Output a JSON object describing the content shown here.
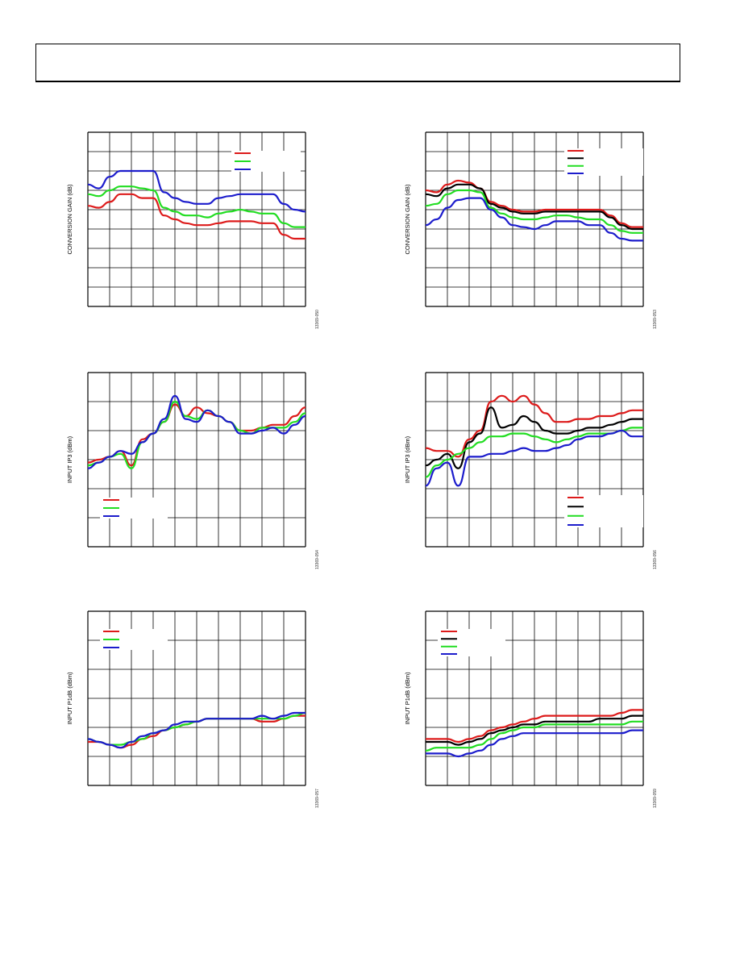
{
  "chart_data": [
    {
      "type": "line",
      "ylabel": "CONVERSION GAIN (dB)",
      "figure_id": "13369-050",
      "x": [
        0,
        1,
        2,
        3,
        4,
        5,
        6,
        7,
        8,
        9,
        10,
        11,
        12,
        13,
        14,
        15,
        16,
        17,
        18,
        19,
        20
      ],
      "xlim": [
        0,
        20
      ],
      "ylim": [
        0,
        9
      ],
      "grid": true,
      "legend_position": "top-right",
      "series": [
        {
          "color": "#dd1b1b",
          "values": [
            5.2,
            5.1,
            5.4,
            5.8,
            5.8,
            5.6,
            5.6,
            4.7,
            4.5,
            4.3,
            4.2,
            4.2,
            4.3,
            4.4,
            4.4,
            4.4,
            4.3,
            4.3,
            3.7,
            3.5,
            3.5
          ]
        },
        {
          "color": "#22dd22",
          "values": [
            5.8,
            5.7,
            6.0,
            6.2,
            6.2,
            6.1,
            6.0,
            5.1,
            4.9,
            4.7,
            4.7,
            4.6,
            4.8,
            4.9,
            5.0,
            4.9,
            4.8,
            4.8,
            4.3,
            4.1,
            4.1
          ]
        },
        {
          "color": "#1c1ccc",
          "values": [
            6.3,
            6.1,
            6.7,
            7.0,
            7.0,
            7.0,
            7.0,
            5.9,
            5.6,
            5.4,
            5.3,
            5.3,
            5.6,
            5.7,
            5.8,
            5.8,
            5.8,
            5.8,
            5.3,
            5.0,
            4.9
          ]
        }
      ]
    },
    {
      "type": "line",
      "ylabel": "CONVERSION GAIN (dB)",
      "figure_id": "13369-053",
      "x": [
        0,
        1,
        2,
        3,
        4,
        5,
        6,
        7,
        8,
        9,
        10,
        11,
        12,
        13,
        14,
        15,
        16,
        17,
        18,
        19,
        20
      ],
      "xlim": [
        0,
        20
      ],
      "ylim": [
        0,
        9
      ],
      "grid": true,
      "legend_position": "top-right",
      "series": [
        {
          "color": "#dd1b1b",
          "values": [
            6.0,
            5.9,
            6.3,
            6.5,
            6.4,
            6.1,
            5.4,
            5.2,
            5.0,
            4.9,
            4.9,
            5.0,
            5.0,
            5.0,
            5.0,
            5.0,
            5.0,
            4.7,
            4.3,
            4.1,
            4.1
          ]
        },
        {
          "color": "#000000",
          "values": [
            5.8,
            5.7,
            6.1,
            6.3,
            6.3,
            6.1,
            5.3,
            5.1,
            4.9,
            4.8,
            4.8,
            4.9,
            4.9,
            4.9,
            4.9,
            4.9,
            4.9,
            4.6,
            4.2,
            4.0,
            4.0
          ]
        },
        {
          "color": "#22dd22",
          "values": [
            5.2,
            5.3,
            5.8,
            6.0,
            6.0,
            5.9,
            5.1,
            4.8,
            4.6,
            4.5,
            4.5,
            4.6,
            4.7,
            4.7,
            4.6,
            4.5,
            4.5,
            4.2,
            3.9,
            3.8,
            3.8
          ]
        },
        {
          "color": "#1c1ccc",
          "values": [
            4.2,
            4.5,
            5.1,
            5.5,
            5.6,
            5.6,
            5.0,
            4.6,
            4.2,
            4.1,
            4.0,
            4.2,
            4.4,
            4.4,
            4.4,
            4.2,
            4.2,
            3.8,
            3.5,
            3.4,
            3.4
          ]
        }
      ]
    },
    {
      "type": "line",
      "ylabel": "INPUT IP3 (dBm)",
      "figure_id": "13369-054",
      "x": [
        0,
        1,
        2,
        3,
        4,
        5,
        6,
        7,
        8,
        9,
        10,
        11,
        12,
        13,
        14,
        15,
        16,
        17,
        18,
        19,
        20
      ],
      "xlim": [
        0,
        20
      ],
      "ylim": [
        0,
        6
      ],
      "grid": true,
      "legend_position": "bottom-left",
      "series": [
        {
          "color": "#dd1b1b",
          "values": [
            2.9,
            3.0,
            3.1,
            3.3,
            2.8,
            3.7,
            3.9,
            4.3,
            4.9,
            4.5,
            4.8,
            4.6,
            4.5,
            4.3,
            4.0,
            4.0,
            4.1,
            4.2,
            4.2,
            4.5,
            4.8
          ]
        },
        {
          "color": "#22dd22",
          "values": [
            2.8,
            2.9,
            3.1,
            3.2,
            2.7,
            3.6,
            3.9,
            4.3,
            5.0,
            4.5,
            4.4,
            4.7,
            4.5,
            4.3,
            4.0,
            3.9,
            4.1,
            4.1,
            4.1,
            4.3,
            4.6
          ]
        },
        {
          "color": "#1c1ccc",
          "values": [
            2.7,
            2.9,
            3.1,
            3.3,
            3.2,
            3.6,
            3.9,
            4.4,
            5.2,
            4.4,
            4.3,
            4.7,
            4.5,
            4.3,
            3.9,
            3.9,
            4.0,
            4.1,
            3.9,
            4.2,
            4.5
          ]
        }
      ]
    },
    {
      "type": "line",
      "ylabel": "INPUT IP3 (dBm)",
      "figure_id": "13369-056",
      "x": [
        0,
        1,
        2,
        3,
        4,
        5,
        6,
        7,
        8,
        9,
        10,
        11,
        12,
        13,
        14,
        15,
        16,
        17,
        18,
        19,
        20
      ],
      "xlim": [
        0,
        20
      ],
      "ylim": [
        0,
        6
      ],
      "grid": true,
      "legend_position": "bottom-right",
      "series": [
        {
          "color": "#dd1b1b",
          "values": [
            3.4,
            3.3,
            3.3,
            3.1,
            3.7,
            4.0,
            5.0,
            5.2,
            5.0,
            5.2,
            4.9,
            4.6,
            4.3,
            4.3,
            4.4,
            4.4,
            4.5,
            4.5,
            4.6,
            4.7,
            4.7
          ]
        },
        {
          "color": "#000000",
          "values": [
            2.8,
            3.0,
            3.2,
            2.7,
            3.6,
            3.9,
            4.8,
            4.1,
            4.2,
            4.5,
            4.3,
            4.0,
            3.9,
            3.9,
            4.0,
            4.1,
            4.1,
            4.2,
            4.3,
            4.4,
            4.4
          ]
        },
        {
          "color": "#22dd22",
          "values": [
            2.4,
            2.8,
            3.0,
            3.2,
            3.4,
            3.6,
            3.8,
            3.8,
            3.9,
            3.9,
            3.8,
            3.7,
            3.6,
            3.7,
            3.8,
            3.9,
            3.9,
            3.9,
            4.0,
            4.1,
            4.1
          ]
        },
        {
          "color": "#1c1ccc",
          "values": [
            2.1,
            2.7,
            2.9,
            2.1,
            3.1,
            3.1,
            3.2,
            3.2,
            3.3,
            3.4,
            3.3,
            3.3,
            3.4,
            3.5,
            3.7,
            3.8,
            3.8,
            3.9,
            4.0,
            3.8,
            3.8
          ]
        }
      ]
    },
    {
      "type": "line",
      "ylabel": "INPUT P1dB (dBm)",
      "figure_id": "13369-057",
      "x": [
        0,
        1,
        2,
        3,
        4,
        5,
        6,
        7,
        8,
        9,
        10,
        11,
        12,
        13,
        14,
        15,
        16,
        17,
        18,
        19,
        20
      ],
      "xlim": [
        0,
        20
      ],
      "ylim": [
        0,
        6
      ],
      "grid": true,
      "legend_position": "top-left",
      "series": [
        {
          "color": "#dd1b1b",
          "values": [
            1.5,
            1.5,
            1.4,
            1.3,
            1.4,
            1.6,
            1.7,
            1.9,
            2.0,
            2.1,
            2.2,
            2.3,
            2.3,
            2.3,
            2.3,
            2.3,
            2.2,
            2.2,
            2.3,
            2.4,
            2.4
          ]
        },
        {
          "color": "#22dd22",
          "values": [
            1.6,
            1.5,
            1.4,
            1.4,
            1.5,
            1.6,
            1.8,
            1.9,
            2.0,
            2.1,
            2.2,
            2.3,
            2.3,
            2.3,
            2.3,
            2.3,
            2.3,
            2.3,
            2.3,
            2.4,
            2.5
          ]
        },
        {
          "color": "#1c1ccc",
          "values": [
            1.6,
            1.5,
            1.4,
            1.3,
            1.5,
            1.7,
            1.8,
            1.9,
            2.1,
            2.2,
            2.2,
            2.3,
            2.3,
            2.3,
            2.3,
            2.3,
            2.4,
            2.3,
            2.4,
            2.5,
            2.5
          ]
        }
      ]
    },
    {
      "type": "line",
      "ylabel": "INPUT P1dB (dBm)",
      "figure_id": "13369-059",
      "x": [
        0,
        1,
        2,
        3,
        4,
        5,
        6,
        7,
        8,
        9,
        10,
        11,
        12,
        13,
        14,
        15,
        16,
        17,
        18,
        19,
        20
      ],
      "xlim": [
        0,
        20
      ],
      "ylim": [
        0,
        6
      ],
      "grid": true,
      "legend_position": "top-left",
      "series": [
        {
          "color": "#dd1b1b",
          "values": [
            1.6,
            1.6,
            1.6,
            1.5,
            1.6,
            1.7,
            1.9,
            2.0,
            2.1,
            2.2,
            2.3,
            2.4,
            2.4,
            2.4,
            2.4,
            2.4,
            2.4,
            2.4,
            2.5,
            2.6,
            2.6
          ]
        },
        {
          "color": "#000000",
          "values": [
            1.5,
            1.5,
            1.5,
            1.4,
            1.5,
            1.6,
            1.8,
            1.9,
            2.0,
            2.1,
            2.1,
            2.2,
            2.2,
            2.2,
            2.2,
            2.2,
            2.3,
            2.3,
            2.3,
            2.4,
            2.4
          ]
        },
        {
          "color": "#22dd22",
          "values": [
            1.2,
            1.3,
            1.3,
            1.3,
            1.3,
            1.4,
            1.6,
            1.8,
            1.9,
            2.0,
            2.0,
            2.1,
            2.1,
            2.1,
            2.1,
            2.1,
            2.1,
            2.1,
            2.1,
            2.2,
            2.2
          ]
        },
        {
          "color": "#1c1ccc",
          "values": [
            1.1,
            1.1,
            1.1,
            1.0,
            1.1,
            1.2,
            1.4,
            1.6,
            1.7,
            1.8,
            1.8,
            1.8,
            1.8,
            1.8,
            1.8,
            1.8,
            1.8,
            1.8,
            1.8,
            1.9,
            1.9
          ]
        }
      ]
    }
  ]
}
